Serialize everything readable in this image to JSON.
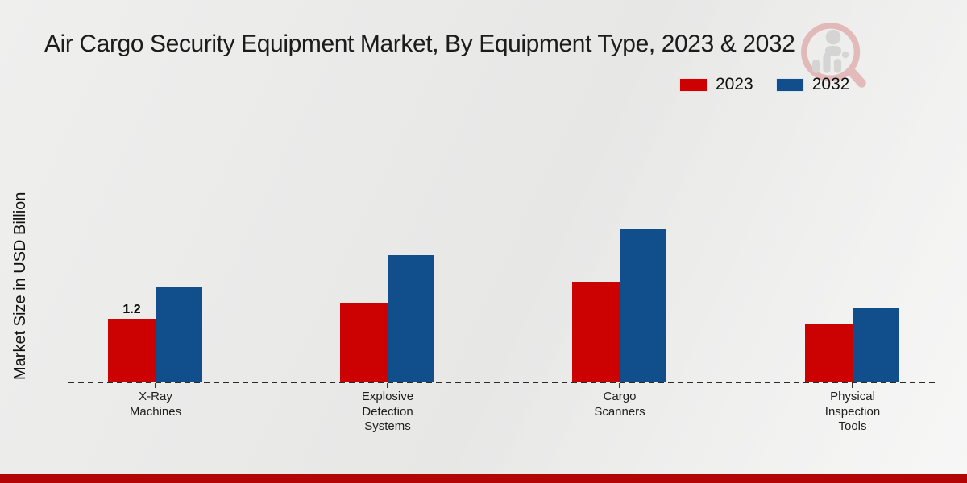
{
  "header": {
    "title": "Air Cargo Security Equipment Market, By Equipment Type, 2023 & 2032"
  },
  "legend": {
    "items": [
      {
        "label": "2023",
        "color": "#cc0202"
      },
      {
        "label": "2032",
        "color": "#114e8c"
      }
    ]
  },
  "watermark": {
    "icon": "market-research-logo"
  },
  "chart_data": {
    "type": "bar",
    "title": "Air Cargo Security Equipment Market, By Equipment Type, 2023 & 2032",
    "xlabel": "",
    "ylabel": "Market Size in USD Billion",
    "categories": [
      "X-Ray Machines",
      "Explosive Detection Systems",
      "Cargo Scanners",
      "Physical Inspection Tools"
    ],
    "category_label_lines": [
      [
        "X-Ray",
        "Machines"
      ],
      [
        "Explosive",
        "Detection",
        "Systems"
      ],
      [
        "Cargo",
        "Scanners"
      ],
      [
        "Physical",
        "Inspection",
        "Tools"
      ]
    ],
    "series": [
      {
        "name": "2023",
        "color": "#cc0202",
        "values": [
          1.2,
          1.5,
          1.9,
          1.1
        ]
      },
      {
        "name": "2032",
        "color": "#114e8c",
        "values": [
          1.8,
          2.4,
          2.9,
          1.4
        ]
      }
    ],
    "data_labels": [
      {
        "series": "2023",
        "category": "X-Ray Machines",
        "text": "1.2"
      }
    ],
    "ylim": [
      0,
      4.5
    ],
    "grid": false,
    "legend_position": "top-right",
    "axis_line_style": "dashed"
  },
  "footer": {
    "bar_color": "#b30505"
  }
}
